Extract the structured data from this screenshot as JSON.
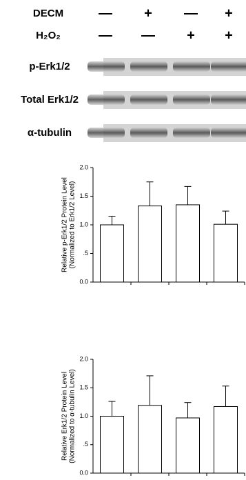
{
  "blot": {
    "treatments": [
      {
        "label": "DECM",
        "signs": [
          "—",
          "+",
          "—",
          "+"
        ]
      },
      {
        "label": "H₂O₂",
        "signs": [
          "—",
          "—",
          "+",
          "+"
        ]
      }
    ],
    "rows": [
      "p-Erk1/2",
      "Total Erk1/2",
      "α-tubulin"
    ]
  },
  "chart_data": [
    {
      "type": "bar",
      "y_label": [
        "Relative p-Erk1/2 Protein Level",
        "(Normalized to Erk1/2 Level)"
      ],
      "categories": [
        null,
        null,
        null,
        null
      ],
      "values": [
        1.0,
        1.33,
        1.35,
        1.01
      ],
      "errors": [
        0.15,
        0.42,
        0.32,
        0.23
      ],
      "color": "#ffffff",
      "ylim": [
        0,
        2
      ],
      "yticks": [
        {
          "value": 0,
          "label": "0.0"
        },
        {
          "value": 0.5,
          "label": ".5"
        },
        {
          "value": 1,
          "label": "1.0"
        },
        {
          "value": 1.5,
          "label": "1.5"
        },
        {
          "value": 2,
          "label": "2.0"
        }
      ]
    },
    {
      "type": "bar",
      "y_label": [
        "Relative Erk1/2 Protein Level",
        "(Normalized to α-tubulin Level)"
      ],
      "categories": [
        null,
        null,
        null,
        null
      ],
      "values": [
        1.0,
        1.19,
        0.97,
        1.17
      ],
      "errors": [
        0.26,
        0.52,
        0.27,
        0.36
      ],
      "color": "#ffffff",
      "ylim": [
        0,
        2
      ],
      "yticks": [
        {
          "value": 0,
          "label": "0.0"
        },
        {
          "value": 0.5,
          "label": ".5"
        },
        {
          "value": 1,
          "label": "1.0"
        },
        {
          "value": 1.5,
          "label": "1.5"
        },
        {
          "value": 2,
          "label": "2.0"
        }
      ]
    }
  ]
}
